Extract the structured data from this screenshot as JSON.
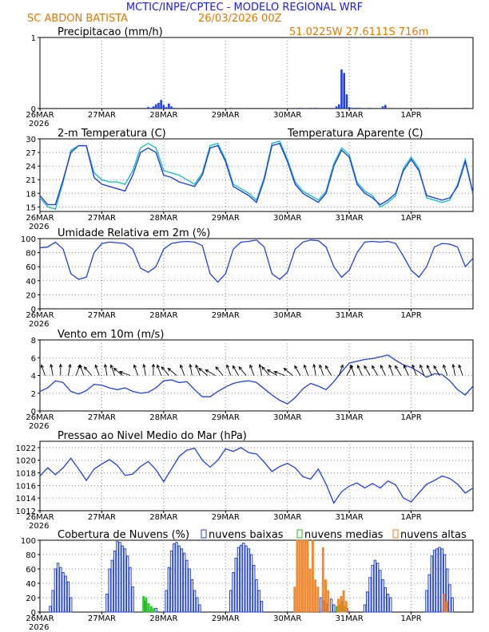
{
  "header": {
    "title": "MCTIC/INPE/CPTEC - MODELO REGIONAL WRF",
    "station": "SC ABDON BATISTA",
    "run": "26/03/2026 00Z",
    "location": "51.0225W 27.6111S 716m"
  },
  "colors": {
    "title": "#1a1aff",
    "header_orange": "#e87800",
    "series_blue": "#2040e0",
    "apparent_cyan": "#20c0c0",
    "cloud_low": "#2040e0",
    "cloud_mid": "#20c020",
    "cloud_high": "#f08020",
    "grid": "#888888"
  },
  "x_axis": {
    "labels": [
      "26MAR",
      "27MAR",
      "28MAR",
      "29MAR",
      "30MAR",
      "31MAR",
      "1APR"
    ],
    "year": "2026",
    "hours_total": 168
  },
  "chart_data": [
    {
      "id": "precip",
      "type": "bar",
      "title": "Precipitacao (mm/h)",
      "ylim": [
        0,
        1
      ],
      "yticks": [
        0,
        1
      ],
      "x_hours": [
        42,
        43,
        44,
        45,
        46,
        47,
        48,
        49,
        50,
        51,
        52,
        74,
        101,
        105,
        107,
        115,
        116,
        117,
        118,
        119,
        120,
        121,
        122,
        123,
        124,
        128,
        133,
        134,
        150,
        165
      ],
      "values": [
        0.02,
        0.01,
        0.03,
        0.06,
        0.08,
        0.12,
        0.05,
        0.02,
        0.07,
        0.03,
        0.01,
        0.01,
        0.01,
        0.01,
        0.01,
        0.03,
        0.06,
        0.55,
        0.5,
        0.2,
        0.02,
        0.01,
        0.01,
        0.01,
        0.01,
        0.01,
        0.03,
        0.05,
        0.01,
        0.01
      ]
    },
    {
      "id": "temp",
      "type": "line",
      "title": "2-m Temperatura (C)",
      "legend": "Temperatura Aparente (C)",
      "ylim": [
        14,
        30
      ],
      "yticks": [
        15,
        18,
        21,
        24,
        27,
        30
      ],
      "x_hours": [
        0,
        3,
        6,
        9,
        12,
        15,
        18,
        21,
        24,
        27,
        30,
        33,
        36,
        39,
        42,
        45,
        48,
        51,
        54,
        57,
        60,
        63,
        66,
        69,
        72,
        75,
        78,
        81,
        84,
        87,
        90,
        93,
        96,
        99,
        102,
        105,
        108,
        111,
        114,
        117,
        120,
        123,
        126,
        129,
        132,
        135,
        138,
        141,
        144,
        147,
        150,
        153,
        156,
        159,
        162,
        165,
        168
      ],
      "series": [
        {
          "name": "Temperatura (C)",
          "values": [
            17.5,
            15.5,
            15.5,
            21,
            27,
            28.5,
            28.5,
            21.5,
            20,
            19.5,
            19,
            18.5,
            22,
            27,
            28,
            27,
            22,
            21.5,
            20.5,
            20,
            19.5,
            22,
            28,
            28.5,
            25,
            19.5,
            18.5,
            17.5,
            16,
            21,
            28.5,
            29,
            25,
            20,
            18,
            17,
            16,
            18,
            24,
            27.5,
            26,
            20,
            18,
            17,
            15.5,
            16.5,
            18,
            23,
            25.5,
            23,
            17.5,
            17,
            16.5,
            17,
            19.5,
            25,
            18
          ]
        },
        {
          "name": "Temperatura Aparente (C)",
          "values": [
            17,
            15,
            14.5,
            20.5,
            27.5,
            28.5,
            28.5,
            22.5,
            21,
            20.5,
            20.5,
            20,
            23,
            28,
            29,
            28,
            23,
            22.5,
            22,
            21,
            20,
            22.5,
            28.5,
            29,
            25.5,
            20,
            19,
            18,
            16.5,
            21.5,
            29,
            29.5,
            25.5,
            20.5,
            18.5,
            17.5,
            16.5,
            18.5,
            24.5,
            28,
            26.5,
            20.5,
            18.5,
            17.5,
            15,
            16,
            17.5,
            23.5,
            26,
            23.5,
            17,
            16.5,
            16,
            16.5,
            20,
            25.5,
            18
          ]
        }
      ]
    },
    {
      "id": "rh",
      "type": "line",
      "title": "Umidade Relativa em 2m (%)",
      "ylim": [
        0,
        100
      ],
      "yticks": [
        0,
        20,
        40,
        60,
        80,
        100
      ],
      "x_hours": [
        0,
        3,
        6,
        9,
        12,
        15,
        18,
        21,
        24,
        27,
        30,
        33,
        36,
        39,
        42,
        45,
        48,
        51,
        54,
        57,
        60,
        63,
        66,
        69,
        72,
        75,
        78,
        81,
        84,
        87,
        90,
        93,
        96,
        99,
        102,
        105,
        108,
        111,
        114,
        117,
        120,
        123,
        126,
        129,
        132,
        135,
        138,
        141,
        144,
        147,
        150,
        153,
        156,
        159,
        162,
        165,
        168
      ],
      "values": [
        87,
        88,
        95,
        85,
        50,
        42,
        45,
        80,
        93,
        95,
        94,
        93,
        85,
        58,
        52,
        60,
        85,
        93,
        95,
        96,
        95,
        90,
        50,
        38,
        50,
        85,
        95,
        96,
        98,
        88,
        50,
        42,
        52,
        85,
        95,
        98,
        97,
        88,
        60,
        45,
        55,
        80,
        95,
        96,
        95,
        96,
        93,
        75,
        55,
        45,
        60,
        88,
        93,
        92,
        88,
        60,
        72
      ]
    },
    {
      "id": "wind",
      "type": "line",
      "title": "Vento em 10m (m/s)",
      "ylim": [
        0,
        8
      ],
      "yticks": [
        0,
        2,
        4,
        6,
        8
      ],
      "x_hours": [
        0,
        3,
        6,
        9,
        12,
        15,
        18,
        21,
        24,
        27,
        30,
        33,
        36,
        39,
        42,
        45,
        48,
        51,
        54,
        57,
        60,
        63,
        66,
        69,
        72,
        75,
        78,
        81,
        84,
        87,
        90,
        93,
        96,
        99,
        102,
        105,
        108,
        111,
        114,
        117,
        120,
        123,
        126,
        129,
        132,
        135,
        138,
        141,
        144,
        147,
        150,
        153,
        156,
        159,
        162,
        165,
        168
      ],
      "values": [
        2.2,
        2.6,
        3.4,
        3.2,
        2.2,
        1.9,
        2.3,
        3,
        2.9,
        2.6,
        2.4,
        2.6,
        2.2,
        2,
        2.1,
        2.6,
        3.4,
        3.5,
        3.2,
        3.3,
        2.4,
        1.6,
        1.6,
        2.2,
        2.7,
        3.1,
        3.3,
        3.4,
        3.2,
        2.5,
        1.8,
        1.2,
        0.8,
        1.5,
        2.5,
        3.1,
        2.8,
        2.4,
        3.3,
        4.4,
        5.4,
        5.6,
        5.8,
        5.9,
        6.1,
        6.3,
        5.7,
        5.2,
        4.9,
        4.4,
        3.8,
        4.2,
        4.1,
        3.4,
        2.4,
        1.8,
        2.8
      ],
      "barbs_hours": [
        2,
        5,
        8,
        11,
        14,
        17,
        20,
        23,
        26,
        29,
        32,
        35,
        38,
        41,
        44,
        47,
        50,
        53,
        56,
        59,
        62,
        65,
        68,
        71,
        74,
        77,
        80,
        83,
        86,
        89,
        92,
        95,
        98,
        101,
        104,
        107,
        110,
        113,
        116,
        119,
        122,
        125,
        128,
        131,
        134,
        137,
        140,
        143,
        146,
        149,
        152,
        155,
        158,
        161,
        164
      ],
      "barbs_dir_deg": [
        200,
        190,
        180,
        170,
        160,
        200,
        220,
        200,
        190,
        200,
        230,
        250,
        200,
        190,
        180,
        200,
        220,
        230,
        200,
        190,
        200,
        230,
        240,
        220,
        200,
        210,
        220,
        200,
        190,
        220,
        240,
        250,
        230,
        210,
        200,
        190,
        200,
        210,
        160,
        150,
        200,
        205,
        210,
        210,
        205,
        200,
        210,
        205,
        200,
        200,
        205,
        210,
        200,
        190,
        200
      ]
    },
    {
      "id": "pressure",
      "type": "line",
      "title": "Pressao ao Nivel Medio do Mar (hPa)",
      "ylim": [
        1012,
        1023
      ],
      "yticks": [
        1012,
        1014,
        1016,
        1018,
        1020,
        1022
      ],
      "x_hours": [
        0,
        3,
        6,
        9,
        12,
        15,
        18,
        21,
        24,
        27,
        30,
        33,
        36,
        39,
        42,
        45,
        48,
        51,
        54,
        57,
        60,
        63,
        66,
        69,
        72,
        75,
        78,
        81,
        84,
        87,
        90,
        93,
        96,
        99,
        102,
        105,
        108,
        111,
        114,
        117,
        120,
        123,
        126,
        129,
        132,
        135,
        138,
        141,
        144,
        147,
        150,
        153,
        156,
        159,
        162,
        165,
        168
      ],
      "values": [
        1017.5,
        1018.8,
        1017.7,
        1018.8,
        1020.3,
        1018.6,
        1016.8,
        1018.6,
        1019.4,
        1020.1,
        1019.2,
        1017.6,
        1017.8,
        1019.0,
        1019.8,
        1018.5,
        1016.6,
        1018.6,
        1020.6,
        1021.6,
        1021.9,
        1020.0,
        1018.9,
        1020.0,
        1021.8,
        1021.4,
        1022.0,
        1021.2,
        1021.0,
        1019.7,
        1018.2,
        1019.0,
        1019.5,
        1018.8,
        1017.4,
        1017.0,
        1018.6,
        1016.2,
        1013.2,
        1015.0,
        1015.9,
        1016.4,
        1015.6,
        1016.3,
        1015.6,
        1016.7,
        1016.1,
        1014.0,
        1013.4,
        1014.8,
        1016.2,
        1016.8,
        1017.5,
        1017.1,
        1016.2,
        1014.8,
        1015.6
      ]
    },
    {
      "id": "clouds",
      "type": "bar",
      "title": "Cobertura de Nuvens (%)",
      "ylim": [
        0,
        100
      ],
      "yticks": [
        0,
        20,
        40,
        60,
        80,
        100
      ],
      "legend": [
        "nuvens baixas",
        "nuvens medias",
        "nuvens altas"
      ],
      "series": [
        {
          "name": "nuvens baixas",
          "x_hours": [
            4,
            5,
            6,
            7,
            8,
            9,
            10,
            11,
            12,
            26,
            27,
            28,
            29,
            30,
            31,
            32,
            33,
            34,
            35,
            36,
            41,
            45,
            49,
            50,
            51,
            52,
            53,
            54,
            55,
            56,
            57,
            58,
            59,
            60,
            61,
            62,
            74,
            75,
            76,
            77,
            78,
            79,
            80,
            81,
            82,
            83,
            84,
            85,
            86,
            109,
            110,
            111,
            113,
            114,
            117,
            119,
            126,
            127,
            128,
            129,
            130,
            131,
            132,
            133,
            134,
            135,
            136,
            150,
            151,
            152,
            153,
            154,
            155,
            156,
            157,
            158,
            159,
            160
          ],
          "values": [
            8,
            30,
            60,
            68,
            62,
            55,
            50,
            42,
            20,
            25,
            60,
            72,
            85,
            98,
            97,
            92,
            88,
            78,
            62,
            35,
            15,
            5,
            30,
            62,
            85,
            95,
            97,
            92,
            88,
            82,
            72,
            60,
            45,
            30,
            20,
            10,
            30,
            55,
            75,
            90,
            93,
            96,
            92,
            88,
            80,
            65,
            45,
            30,
            15,
            20,
            15,
            12,
            18,
            10,
            14,
            5,
            10,
            28,
            48,
            65,
            72,
            68,
            58,
            45,
            34,
            25,
            20,
            30,
            52,
            78,
            86,
            88,
            90,
            88,
            80,
            60,
            38,
            20
          ]
        },
        {
          "name": "nuvens medias",
          "x_hours": [
            40,
            41,
            42,
            43,
            44,
            115,
            116,
            117,
            118
          ],
          "values": [
            22,
            20,
            12,
            8,
            5,
            8,
            10,
            12,
            8
          ]
        },
        {
          "name": "nuvens altas",
          "x_hours": [
            99,
            100,
            101,
            102,
            103,
            104,
            105,
            106,
            107,
            108,
            110,
            111,
            112,
            116,
            117,
            118,
            119,
            157,
            158
          ],
          "values": [
            35,
            100,
            100,
            100,
            100,
            100,
            60,
            100,
            45,
            35,
            90,
            45,
            30,
            18,
            22,
            30,
            15,
            25,
            15
          ]
        }
      ]
    }
  ]
}
